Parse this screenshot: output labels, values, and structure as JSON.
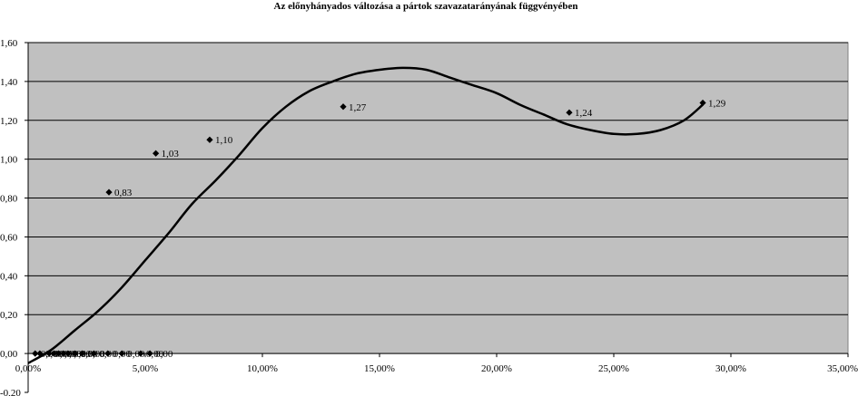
{
  "chart_data": {
    "type": "scatter",
    "title": "Az előnyhányados változása a pártok szavazatarányának függvényében",
    "xlabel": "",
    "ylabel": "",
    "xlim": [
      0,
      0.35
    ],
    "ylim": [
      -0.2,
      1.6
    ],
    "x_ticks": [
      0,
      0.05,
      0.1,
      0.15,
      0.2,
      0.25,
      0.3,
      0.35
    ],
    "x_tick_labels": [
      "0,00%",
      "5,00%",
      "10,00%",
      "15,00%",
      "20,00%",
      "25,00%",
      "30,00%",
      "35,00%"
    ],
    "y_ticks": [
      -0.2,
      0,
      0.2,
      0.4,
      0.6,
      0.8,
      1.0,
      1.2,
      1.4,
      1.6
    ],
    "y_tick_labels": [
      "-0,20",
      "0,00",
      "0,20",
      "0,40",
      "0,60",
      "0,80",
      "1,00",
      "1,20",
      "1,40",
      "1,60"
    ],
    "grid": "horizontal",
    "plot_background": "#c0c0c0",
    "marker_color": "#000000",
    "series": [
      {
        "values": [
          {
            "x": 0.003,
            "y": 0.0,
            "label": "0,00"
          },
          {
            "x": 0.005,
            "y": 0.0,
            "label": "0,00"
          },
          {
            "x": 0.009,
            "y": 0.0,
            "label": "0,00"
          },
          {
            "x": 0.011,
            "y": 0.0,
            "label": "0,00"
          },
          {
            "x": 0.013,
            "y": 0.0,
            "label": "0,00"
          },
          {
            "x": 0.015,
            "y": 0.0,
            "label": "0,00"
          },
          {
            "x": 0.017,
            "y": 0.0,
            "label": "0,00"
          },
          {
            "x": 0.02,
            "y": 0.0,
            "label": "0,00"
          },
          {
            "x": 0.023,
            "y": 0.0,
            "label": "0,00"
          },
          {
            "x": 0.028,
            "y": 0.0,
            "label": "0,00"
          },
          {
            "x": 0.034,
            "y": 0.0,
            "label": "0,00"
          },
          {
            "x": 0.04,
            "y": 0.0,
            "label": "0,00"
          },
          {
            "x": 0.048,
            "y": 0.0,
            "label": "0,00"
          },
          {
            "x": 0.052,
            "y": 0.0,
            "label": "0,00"
          },
          {
            "x": 0.0345,
            "y": 0.83,
            "label": "0,83"
          },
          {
            "x": 0.0545,
            "y": 1.03,
            "label": "1,03"
          },
          {
            "x": 0.0775,
            "y": 1.1,
            "label": "1,10"
          },
          {
            "x": 0.1345,
            "y": 1.27,
            "label": "1,27"
          },
          {
            "x": 0.231,
            "y": 1.24,
            "label": "1,24"
          },
          {
            "x": 0.288,
            "y": 1.29,
            "label": "1,29"
          }
        ]
      }
    ],
    "trendline": {
      "type": "polynomial",
      "points": [
        {
          "x": 0.0,
          "y": -0.05
        },
        {
          "x": 0.01,
          "y": 0.02
        },
        {
          "x": 0.02,
          "y": 0.12
        },
        {
          "x": 0.03,
          "y": 0.22
        },
        {
          "x": 0.04,
          "y": 0.34
        },
        {
          "x": 0.05,
          "y": 0.48
        },
        {
          "x": 0.06,
          "y": 0.62
        },
        {
          "x": 0.07,
          "y": 0.77
        },
        {
          "x": 0.08,
          "y": 0.89
        },
        {
          "x": 0.09,
          "y": 1.02
        },
        {
          "x": 0.1,
          "y": 1.16
        },
        {
          "x": 0.11,
          "y": 1.27
        },
        {
          "x": 0.12,
          "y": 1.35
        },
        {
          "x": 0.13,
          "y": 1.4
        },
        {
          "x": 0.14,
          "y": 1.44
        },
        {
          "x": 0.15,
          "y": 1.46
        },
        {
          "x": 0.16,
          "y": 1.47
        },
        {
          "x": 0.17,
          "y": 1.46
        },
        {
          "x": 0.18,
          "y": 1.42
        },
        {
          "x": 0.19,
          "y": 1.38
        },
        {
          "x": 0.2,
          "y": 1.34
        },
        {
          "x": 0.21,
          "y": 1.28
        },
        {
          "x": 0.22,
          "y": 1.23
        },
        {
          "x": 0.23,
          "y": 1.18
        },
        {
          "x": 0.24,
          "y": 1.15
        },
        {
          "x": 0.25,
          "y": 1.13
        },
        {
          "x": 0.26,
          "y": 1.13
        },
        {
          "x": 0.27,
          "y": 1.15
        },
        {
          "x": 0.28,
          "y": 1.2
        },
        {
          "x": 0.288,
          "y": 1.28
        }
      ]
    }
  }
}
